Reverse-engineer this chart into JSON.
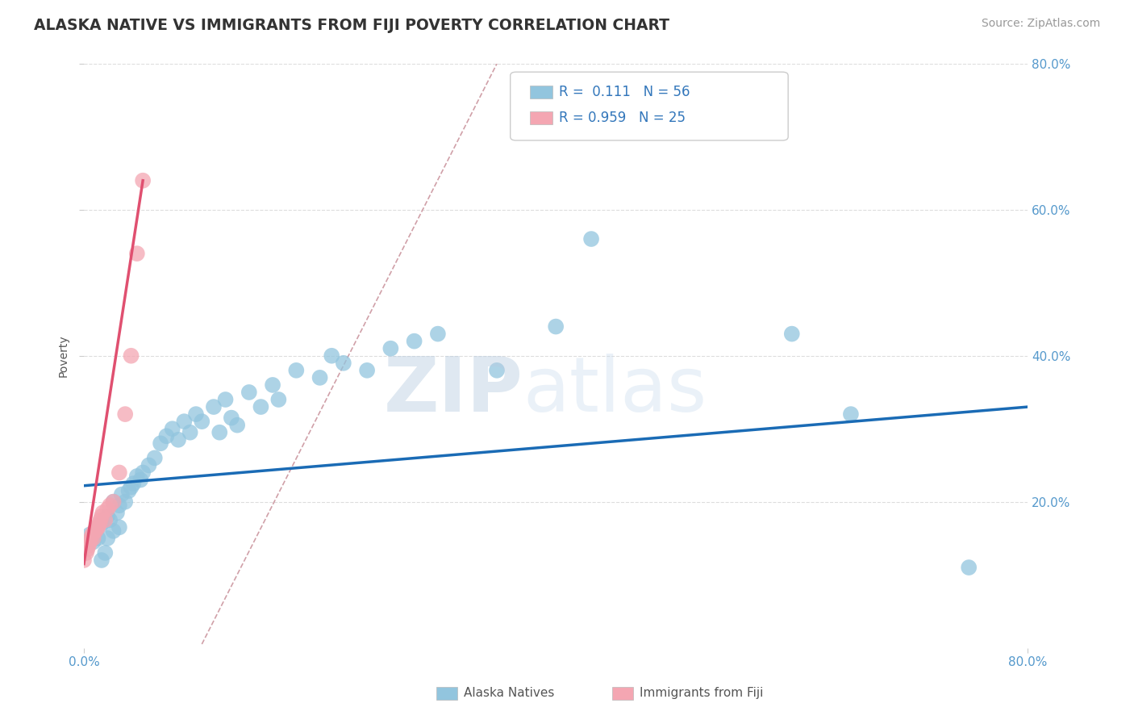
{
  "title": "ALASKA NATIVE VS IMMIGRANTS FROM FIJI POVERTY CORRELATION CHART",
  "source": "Source: ZipAtlas.com",
  "ylabel": "Poverty",
  "xlim": [
    0,
    0.8
  ],
  "ylim": [
    0,
    0.8
  ],
  "alaska_R": 0.111,
  "alaska_N": 56,
  "fiji_R": 0.959,
  "fiji_N": 25,
  "alaska_color": "#92C5DE",
  "fiji_color": "#F4A6B2",
  "alaska_line_color": "#1A6BB5",
  "fiji_line_color": "#E05070",
  "dashed_line_color": "#D0A0A8",
  "grid_color": "#DDDDDD",
  "watermark_zip_color": "#B8CDE0",
  "watermark_atlas_color": "#C8D8E8",
  "background_color": "#FFFFFF",
  "alaska_x": [
    0.005,
    0.008,
    0.01,
    0.012,
    0.015,
    0.015,
    0.018,
    0.02,
    0.02,
    0.022,
    0.025,
    0.025,
    0.028,
    0.03,
    0.03,
    0.032,
    0.035,
    0.038,
    0.04,
    0.042,
    0.045,
    0.048,
    0.05,
    0.055,
    0.06,
    0.065,
    0.07,
    0.075,
    0.08,
    0.085,
    0.09,
    0.095,
    0.1,
    0.11,
    0.115,
    0.12,
    0.125,
    0.13,
    0.14,
    0.15,
    0.16,
    0.165,
    0.18,
    0.2,
    0.21,
    0.22,
    0.24,
    0.26,
    0.28,
    0.3,
    0.35,
    0.4,
    0.43,
    0.6,
    0.65,
    0.75
  ],
  "alaska_y": [
    0.155,
    0.145,
    0.16,
    0.15,
    0.12,
    0.17,
    0.13,
    0.18,
    0.15,
    0.175,
    0.16,
    0.2,
    0.185,
    0.165,
    0.195,
    0.21,
    0.2,
    0.215,
    0.22,
    0.225,
    0.235,
    0.23,
    0.24,
    0.25,
    0.26,
    0.28,
    0.29,
    0.3,
    0.285,
    0.31,
    0.295,
    0.32,
    0.31,
    0.33,
    0.295,
    0.34,
    0.315,
    0.305,
    0.35,
    0.33,
    0.36,
    0.34,
    0.38,
    0.37,
    0.4,
    0.39,
    0.38,
    0.41,
    0.42,
    0.43,
    0.38,
    0.44,
    0.56,
    0.43,
    0.32,
    0.11
  ],
  "fiji_x": [
    0.0,
    0.002,
    0.003,
    0.004,
    0.005,
    0.006,
    0.007,
    0.008,
    0.009,
    0.01,
    0.011,
    0.012,
    0.013,
    0.014,
    0.015,
    0.016,
    0.018,
    0.02,
    0.022,
    0.025,
    0.03,
    0.035,
    0.04,
    0.045,
    0.05
  ],
  "fiji_y": [
    0.12,
    0.13,
    0.135,
    0.14,
    0.145,
    0.15,
    0.155,
    0.15,
    0.16,
    0.16,
    0.165,
    0.165,
    0.17,
    0.175,
    0.18,
    0.185,
    0.175,
    0.19,
    0.195,
    0.2,
    0.24,
    0.32,
    0.4,
    0.54,
    0.64
  ],
  "alaska_line_x": [
    0.0,
    0.8
  ],
  "alaska_line_y": [
    0.222,
    0.33
  ],
  "fiji_line_x": [
    0.0,
    0.05
  ],
  "fiji_line_y": [
    0.115,
    0.64
  ],
  "dashed_line_x": [
    0.1,
    0.35
  ],
  "dashed_line_y": [
    0.005,
    0.8
  ]
}
